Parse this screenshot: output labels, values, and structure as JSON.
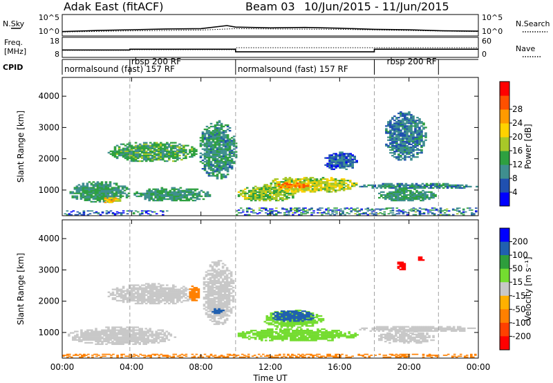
{
  "header": {
    "station": "Adak East (fitACF)",
    "beam": "Beam 03",
    "date_range": "10/Jun/2015 - 11/Jun/2015"
  },
  "chart_data": [
    {
      "type": "line",
      "name": "noise-panel",
      "left_label": "N.Sky",
      "right_label": "N.Search",
      "y_ticks_left": [
        "10^5",
        "10^0"
      ],
      "y_ticks_right": [
        "10^5",
        "10^0"
      ],
      "series": [
        {
          "name": "N.Sky",
          "style": "solid",
          "x_hours": [
            0,
            2,
            4,
            6,
            8,
            9.5,
            10,
            12,
            14,
            16,
            18,
            20,
            22,
            24
          ],
          "log10_values": [
            0.8,
            1.1,
            1.3,
            1.5,
            1.6,
            2.4,
            2.0,
            1.8,
            1.9,
            1.7,
            1.4,
            1.3,
            1.0,
            0.9
          ]
        },
        {
          "name": "N.Search",
          "style": "dotted",
          "x_hours": [
            0,
            4,
            8,
            10,
            12,
            16,
            20,
            24
          ],
          "log10_values": [
            0.7,
            1.0,
            1.2,
            1.6,
            1.5,
            1.4,
            1.1,
            0.8
          ]
        }
      ]
    },
    {
      "type": "line",
      "name": "freq-nave-panel",
      "left_label_line1": "Freq.",
      "left_label_line2": "[MHz]",
      "right_label": "Nave",
      "y_ticks_left": [
        "18",
        "8"
      ],
      "y_ticks_right": [
        "60",
        "0"
      ],
      "series": [
        {
          "name": "Freq.",
          "unit": "MHz",
          "style": "solid",
          "x_hours": [
            0,
            3.9,
            3.9,
            10,
            10,
            18,
            18,
            24
          ],
          "values": [
            11.5,
            11.5,
            12.0,
            12.0,
            10.3,
            10.3,
            12.0,
            12.0
          ]
        },
        {
          "name": "Nave",
          "style": "dotted",
          "x_hours": [
            0,
            3.9,
            3.9,
            10,
            10,
            18,
            18,
            24
          ],
          "values": [
            20,
            20,
            22,
            22,
            30,
            30,
            30,
            30
          ]
        }
      ]
    },
    {
      "type": "table",
      "name": "cpid-panel",
      "label": "CPID",
      "segments": [
        {
          "label": "normalsound (fast) 157 RF",
          "start_hour": 0
        },
        {
          "label": "rbsp 200 RF",
          "start_hour": 3.9
        },
        {
          "label": "normalsound (fast) 157 RF",
          "start_hour": 10
        },
        {
          "label": "rbsp 200 RF",
          "start_hour": 18
        },
        {
          "label": "",
          "start_hour": 21.7
        }
      ]
    },
    {
      "type": "heatmap",
      "name": "power-panel",
      "ylabel": "Slant Range [km]",
      "y_ticks": [
        1000,
        2000,
        3000,
        4000
      ],
      "ylim": [
        180,
        4600
      ],
      "colorbar": {
        "label": "Power [dB]",
        "ticks": [
          4,
          8,
          12,
          16,
          20,
          24,
          28
        ],
        "colors": [
          "#0000ff",
          "#2050b0",
          "#3f8f8f",
          "#2ea040",
          "#a8c828",
          "#ffd200",
          "#ff9a00",
          "#ff5000",
          "#ff0000"
        ]
      },
      "regions": [
        {
          "x": [
            0.1,
            6.2
          ],
          "y": [
            200,
            350
          ],
          "value": 6,
          "noise": true
        },
        {
          "x": [
            0.3,
            3.9
          ],
          "y": [
            560,
            1260
          ],
          "value": 12
        },
        {
          "x": [
            2.3,
            3.3
          ],
          "y": [
            540,
            760
          ],
          "value": 23
        },
        {
          "x": [
            4.0,
            8.6
          ],
          "y": [
            600,
            1060
          ],
          "value": 12
        },
        {
          "x": [
            2.5,
            7.8
          ],
          "y": [
            1860,
            2540
          ],
          "value": 13
        },
        {
          "x": [
            7.8,
            10.0
          ],
          "y": [
            1300,
            3200
          ],
          "value": 11
        },
        {
          "x": [
            10.0,
            13.5
          ],
          "y": [
            600,
            1120
          ],
          "value": 17
        },
        {
          "x": [
            11.5,
            17.0
          ],
          "y": [
            880,
            1420
          ],
          "value": 19
        },
        {
          "x": [
            12.3,
            14.2
          ],
          "y": [
            1020,
            1220
          ],
          "value": 28
        },
        {
          "x": [
            17.0,
            23.9
          ],
          "y": [
            1000,
            1200
          ],
          "value": 10
        },
        {
          "x": [
            18.1,
            21.5
          ],
          "y": [
            600,
            1020
          ],
          "value": 12
        },
        {
          "x": [
            18.5,
            21.0
          ],
          "y": [
            1900,
            3500
          ],
          "value": 9
        },
        {
          "x": [
            15.0,
            17.0
          ],
          "y": [
            1600,
            2200
          ],
          "value": 7
        },
        {
          "x": [
            10.0,
            23.9
          ],
          "y": [
            200,
            420
          ],
          "value": 9,
          "noise": true
        }
      ]
    },
    {
      "type": "heatmap",
      "name": "velocity-panel",
      "ylabel": "Slant Range [km]",
      "xlabel": "Time UT",
      "x_ticks": [
        "00:00",
        "04:00",
        "08:00",
        "12:00",
        "16:00",
        "20:00",
        "00:00"
      ],
      "y_ticks": [
        1000,
        2000,
        3000,
        4000
      ],
      "ylim": [
        180,
        4600
      ],
      "colorbar": {
        "label": "Velocity [m s⁻¹]",
        "ticks": [
          200,
          100,
          50,
          15,
          -15,
          -50,
          -100,
          -200
        ],
        "colors": [
          "#0000ff",
          "#2060b0",
          "#2e9e3c",
          "#74dc30",
          "#c8c8c8",
          "#ffb000",
          "#ff8000",
          "#ff4000",
          "#ff0000"
        ]
      },
      "regions": [
        {
          "x": [
            0.2,
            6.5
          ],
          "y": [
            560,
            1160
          ],
          "value": 0
        },
        {
          "x": [
            2.5,
            7.8
          ],
          "y": [
            1860,
            2540
          ],
          "value": 0
        },
        {
          "x": [
            7.2,
            7.9
          ],
          "y": [
            1960,
            2480
          ],
          "value": -80
        },
        {
          "x": [
            8.0,
            9.9
          ],
          "y": [
            1200,
            3300
          ],
          "value": 0
        },
        {
          "x": [
            8.5,
            9.3
          ],
          "y": [
            1550,
            1750
          ],
          "value": 180
        },
        {
          "x": [
            10.0,
            17.0
          ],
          "y": [
            680,
            1120
          ],
          "value": 40
        },
        {
          "x": [
            11.5,
            15.0
          ],
          "y": [
            1100,
            1700
          ],
          "value": 35
        },
        {
          "x": [
            12.0,
            14.5
          ],
          "y": [
            1300,
            1700
          ],
          "value": 120
        },
        {
          "x": [
            17.0,
            23.9
          ],
          "y": [
            980,
            1200
          ],
          "value": 0
        },
        {
          "x": [
            18.1,
            21.5
          ],
          "y": [
            600,
            1020
          ],
          "value": 0
        },
        {
          "x": [
            19.2,
            19.8
          ],
          "y": [
            2950,
            3250
          ],
          "value": -220
        },
        {
          "x": [
            20.4,
            20.8
          ],
          "y": [
            3250,
            3450
          ],
          "value": -220
        },
        {
          "x": [
            0.0,
            23.9
          ],
          "y": [
            200,
            320
          ],
          "value": -60,
          "noise": true
        }
      ]
    }
  ]
}
